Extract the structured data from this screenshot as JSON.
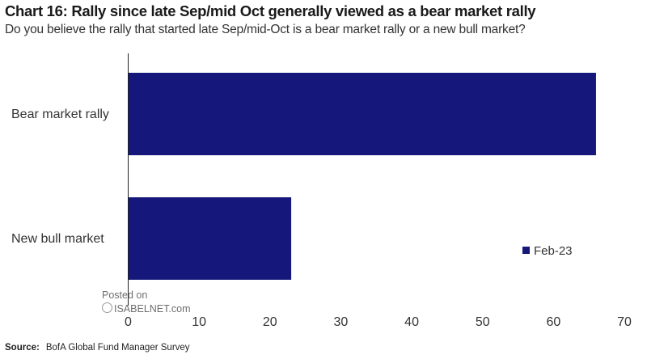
{
  "chart_data": {
    "type": "bar",
    "orientation": "horizontal",
    "title": "Chart 16: Rally since late Sep/mid Oct generally viewed as a bear market rally",
    "subtitle": "Do you believe the rally that started late Sep/mid-Oct is a bear market rally or a new bull market?",
    "categories": [
      "Bear market rally",
      "New bull market"
    ],
    "series": [
      {
        "name": "Feb-23",
        "values": [
          66,
          23
        ],
        "color": "#15187a"
      }
    ],
    "xlim": [
      0,
      70
    ],
    "xticks": [
      "0",
      "10",
      "20",
      "30",
      "40",
      "50",
      "60",
      "70"
    ],
    "grid": false,
    "legend_position": "bottom-right"
  },
  "source": {
    "label": "Source:",
    "text": "BofA Global Fund Manager Survey"
  },
  "watermark": {
    "line1": "Posted on",
    "line2": "ISABELNET.com"
  }
}
